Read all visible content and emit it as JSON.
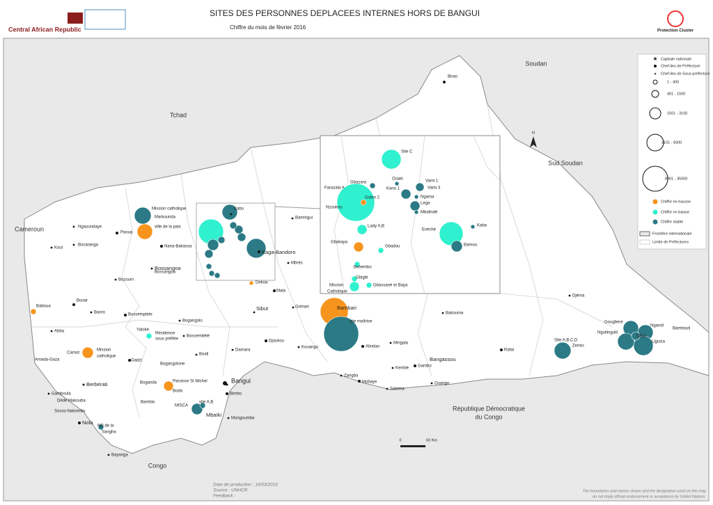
{
  "header": {
    "title": "SITES DES PERSONNES DEPLACEES INTERNES HORS DE BANGUI",
    "subtitle": "Chiffre du mois de février 2016",
    "org_left": "Central African Republic",
    "org_right": "Protection Cluster"
  },
  "countries": [
    "Tchad",
    "Soudan",
    "Sud Soudan",
    "Cameroun",
    "Congo",
    "République Démocratique",
    "du Congo"
  ],
  "places": [
    "Birao",
    "Kabo",
    "Mission catholique",
    "Markounda",
    "Ngaoundaye",
    "Paoua",
    "ville de la paix",
    "Bocaranga",
    "Koui",
    "Nana-Bakassa",
    "Bossangoa",
    "Bozoum",
    "Kaga-Bandoro",
    "Mbrès",
    "Bamingui",
    "Dekoa",
    "Mala",
    "Sibut",
    "Grimari",
    "Bambari",
    "site maîtrise",
    "Bouar",
    "Baboua",
    "Baoro",
    "Abba",
    "Bossemptele",
    "Yaloké",
    "Résidence",
    "sous préfète",
    "Bogangolo",
    "Bossembélé",
    "Carnot",
    "Mission",
    "catholique",
    "Amada-Gaza",
    "Gadzi",
    "Boali",
    "Bogangolone",
    "Damara",
    "Djoukou",
    "Berbérati",
    "Gamboula",
    "Dédé Makouba",
    "Sosso-Nakombo",
    "Nola",
    "ND de la",
    "Sangha",
    "Bayanga",
    "Boganda",
    "Paroisse St Michel",
    "Boda",
    "Bangui",
    "Bimbo",
    "Bambio",
    "MISCA",
    "site A,B",
    "Mbaïki",
    "Mongoumba",
    "Kouango",
    "Alindao",
    "Mingala",
    "Zangba",
    "Mobaye",
    "Satéma",
    "Kembé",
    "Gambo",
    "Bangassou",
    "Ouango",
    "Bakouma",
    "Rafaï",
    "Zemio",
    "Site A,B,C,D",
    "Djéma",
    "Gougbere",
    "Nguilinguili",
    "Ngandi",
    "Bambouti",
    "Obo",
    "Liguiza",
    "Bossangoa"
  ],
  "inset": [
    "Site C",
    "Gbazara",
    "Ouaki",
    "Vami 1",
    "Vami 3",
    "Farazala A",
    "Kano 1",
    "Gobin 2",
    "Ngama",
    "Lega",
    "Mbalindé",
    "Nzoukou",
    "Lady A,B",
    "Evéché",
    "Kaba",
    "Bamou",
    "Gbakaya",
    "Gbadou",
    "Bebembo",
    "Gbigbi",
    "Mission",
    "Catholique",
    "Gbassané et Baya"
  ],
  "legend": {
    "items": [
      "Capitale nationale",
      "Chef-lieu de Préfecture",
      "Chef-lieu de Sous-préfecture",
      "1 - 400",
      "401 - 1500",
      "1501 - 3100",
      "3101 - 8300",
      "8301 - 35000",
      "Chiffre en hausse",
      "Chiffre en baisse",
      "Chiffre stable",
      "Frontière internationale",
      "Limite de Préfectures"
    ]
  },
  "north": "N",
  "scale": [
    "0",
    "60 Km"
  ],
  "footer": [
    "Date de production : 16/03/2016",
    "Source : UNHCR",
    "Feedback : "
  ],
  "disclaimer": [
    "The boundaries and names shown and the designation used on this map",
    "do not imply official endorsement or acceptance by United Nations."
  ]
}
